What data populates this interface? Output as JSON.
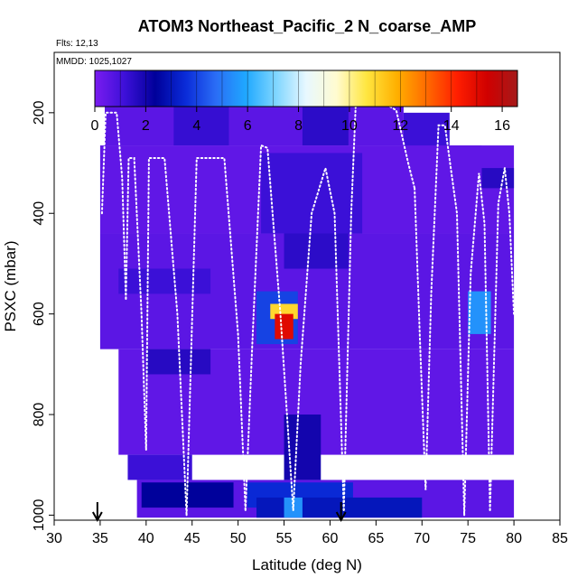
{
  "chart_data": {
    "type": "heatmap",
    "title": "ATOM3 Northeast_Pacific_2 N_coarse_AMP",
    "flights_label": "Flts: 12,13",
    "dates_label": "MMDD: 1025,1027",
    "xlabel": "Latitude (deg N)",
    "ylabel": "PSXC (mbar)",
    "xlim": [
      30,
      85
    ],
    "ylim": [
      1010,
      80
    ],
    "x_ticks": [
      30,
      35,
      40,
      45,
      50,
      55,
      60,
      65,
      70,
      75,
      80,
      85
    ],
    "y_ticks": [
      200,
      400,
      600,
      800,
      1000
    ],
    "colorbar": {
      "min": 0,
      "max": 16.6,
      "ticks": [
        0,
        2,
        4,
        6,
        8,
        10,
        12,
        14,
        16
      ],
      "colors": [
        "#7a1cf0",
        "#3c10d8",
        "#00009a",
        "#0a2bd8",
        "#2a6cf5",
        "#1fa8ff",
        "#7fd6ff",
        "#e8f8ff",
        "#fffbd0",
        "#ffe640",
        "#ffb000",
        "#ff6a00",
        "#ff1e00",
        "#d00000",
        "#a51a1a"
      ]
    },
    "arrows_at_latitude": [
      34.7,
      61.2
    ],
    "cells": [
      {
        "lat0": 35.5,
        "lat1": 68.0,
        "p0": 165,
        "p1": 265,
        "v": 0.6
      },
      {
        "lat0": 43.0,
        "lat1": 49.0,
        "p0": 165,
        "p1": 265,
        "v": 1.3
      },
      {
        "lat0": 57.0,
        "lat1": 62.0,
        "p0": 165,
        "p1": 265,
        "v": 1.5
      },
      {
        "lat0": 68.0,
        "lat1": 73.0,
        "p0": 200,
        "p1": 300,
        "v": 1.2
      },
      {
        "lat0": 73.0,
        "lat1": 76.5,
        "p0": 265,
        "p1": 310,
        "v": 2.0
      },
      {
        "lat0": 35.0,
        "lat1": 80.0,
        "p0": 265,
        "p1": 440,
        "v": 0.5
      },
      {
        "lat0": 52.5,
        "lat1": 63.5,
        "p0": 280,
        "p1": 440,
        "v": 1.2
      },
      {
        "lat0": 76.5,
        "lat1": 80.0,
        "p0": 310,
        "p1": 350,
        "v": 1.6
      },
      {
        "lat0": 35.0,
        "lat1": 80.0,
        "p0": 440,
        "p1": 670,
        "v": 0.6
      },
      {
        "lat0": 55.0,
        "lat1": 62.0,
        "p0": 440,
        "p1": 510,
        "v": 1.5
      },
      {
        "lat0": 37.0,
        "lat1": 47.0,
        "p0": 510,
        "p1": 560,
        "v": 1.2
      },
      {
        "lat0": 52.0,
        "lat1": 56.5,
        "p0": 555,
        "p1": 660,
        "v": 4.0
      },
      {
        "lat0": 53.5,
        "lat1": 56.5,
        "p0": 580,
        "p1": 610,
        "v": 11.0
      },
      {
        "lat0": 54.0,
        "lat1": 56.0,
        "p0": 600,
        "p1": 650,
        "v": 15.0
      },
      {
        "lat0": 75.0,
        "lat1": 77.5,
        "p0": 555,
        "p1": 640,
        "v": 5.5
      },
      {
        "lat0": 37.0,
        "lat1": 80.0,
        "p0": 670,
        "p1": 880,
        "v": 0.5
      },
      {
        "lat0": 40.0,
        "lat1": 47.0,
        "p0": 670,
        "p1": 720,
        "v": 1.6
      },
      {
        "lat0": 55.0,
        "lat1": 59.0,
        "p0": 800,
        "p1": 930,
        "v": 2.0
      },
      {
        "lat0": 38.0,
        "lat1": 45.0,
        "p0": 880,
        "p1": 930,
        "v": 1.2
      },
      {
        "lat0": 39.0,
        "lat1": 80.0,
        "p0": 930,
        "p1": 1005,
        "v": 0.6
      },
      {
        "lat0": 39.5,
        "lat1": 49.5,
        "p0": 935,
        "p1": 985,
        "v": 2.4
      },
      {
        "lat0": 51.0,
        "lat1": 62.5,
        "p0": 935,
        "p1": 985,
        "v": 3.5
      },
      {
        "lat0": 52.0,
        "lat1": 70.0,
        "p0": 965,
        "p1": 1005,
        "v": 3.0
      },
      {
        "lat0": 55.0,
        "lat1": 57.0,
        "p0": 965,
        "p1": 1005,
        "v": 5.5
      }
    ],
    "flight_tracks": [
      [
        [
          35.2,
          400
        ],
        [
          35.6,
          200
        ],
        [
          36.8,
          200
        ],
        [
          37.4,
          330
        ],
        [
          37.8,
          570
        ]
      ],
      [
        [
          37.8,
          570
        ],
        [
          38.1,
          290
        ],
        [
          38.7,
          290
        ],
        [
          39.5,
          600
        ],
        [
          40.0,
          870
        ]
      ],
      [
        [
          40.0,
          870
        ],
        [
          40.3,
          290
        ],
        [
          42.0,
          290
        ],
        [
          43.4,
          600
        ],
        [
          44.4,
          1000
        ]
      ],
      [
        [
          44.4,
          1000
        ],
        [
          45.5,
          290
        ],
        [
          48.5,
          290
        ],
        [
          50.0,
          640
        ],
        [
          50.8,
          990
        ]
      ],
      [
        [
          50.8,
          990
        ],
        [
          51.5,
          680
        ],
        [
          52.5,
          265
        ],
        [
          53.2,
          270
        ],
        [
          54.6,
          600
        ],
        [
          56.0,
          990
        ]
      ],
      [
        [
          56.0,
          990
        ],
        [
          56.8,
          700
        ],
        [
          58.0,
          400
        ],
        [
          59.5,
          310
        ],
        [
          60.5,
          400
        ],
        [
          61.5,
          990
        ]
      ],
      [
        [
          61.5,
          990
        ],
        [
          62.3,
          400
        ],
        [
          62.8,
          180
        ],
        [
          65.8,
          180
        ],
        [
          67.2,
          195
        ],
        [
          68.5,
          300
        ],
        [
          69.2,
          350
        ]
      ],
      [
        [
          69.2,
          350
        ],
        [
          69.8,
          660
        ],
        [
          70.4,
          950
        ],
        [
          71.0,
          560
        ],
        [
          71.8,
          225
        ],
        [
          72.5,
          225
        ],
        [
          73.8,
          400
        ],
        [
          74.6,
          1000
        ]
      ],
      [
        [
          74.6,
          1000
        ],
        [
          75.3,
          520
        ],
        [
          76.2,
          320
        ],
        [
          76.8,
          420
        ],
        [
          77.4,
          990
        ]
      ],
      [
        [
          77.4,
          990
        ],
        [
          78.3,
          380
        ],
        [
          79.0,
          310
        ],
        [
          79.5,
          400
        ],
        [
          80.0,
          600
        ]
      ]
    ]
  }
}
